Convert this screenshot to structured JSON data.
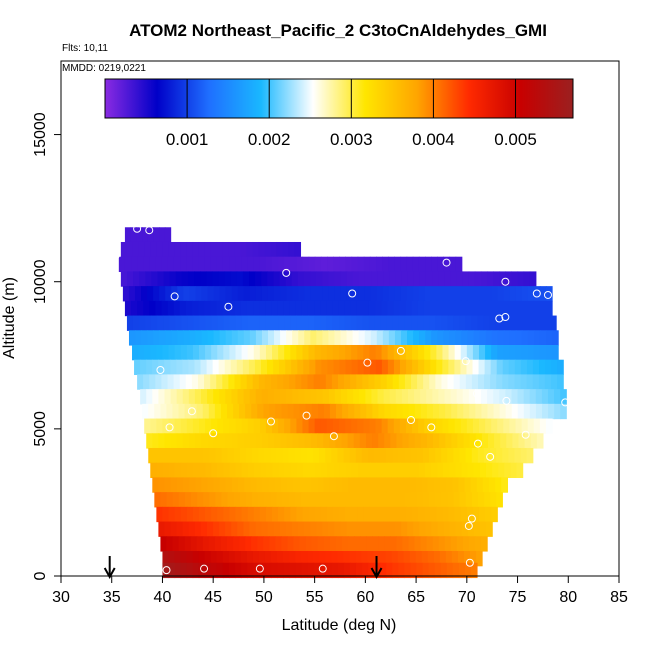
{
  "chart_data": {
    "type": "heatmap",
    "title": "ATOM2 Northeast_Pacific_2 C3toCnAldehydes_GMI",
    "subtitle_flights": "Flts: 10,11",
    "subtitle_dates": "MMDD: 0219,0221",
    "xlabel": "Latitude (deg N)",
    "ylabel": "Altitude (m)",
    "xlim": [
      30,
      85
    ],
    "ylim": [
      0,
      17500
    ],
    "x_ticks": [
      "30",
      "35",
      "40",
      "45",
      "50",
      "55",
      "60",
      "65",
      "70",
      "75",
      "80",
      "85"
    ],
    "y_ticks": [
      "0",
      "5000",
      "10000",
      "15000"
    ],
    "colorbar": {
      "range": [
        0,
        0.0057
      ],
      "ticks": [
        "0.001",
        "0.002",
        "0.003",
        "0.004",
        "0.005"
      ],
      "colors": [
        "#8a2be2",
        "#0000c8",
        "#1f6fff",
        "#1ab8ff",
        "#ffffff",
        "#ffe600",
        "#ffa500",
        "#ff2a00",
        "#c80000",
        "#9b2020"
      ]
    },
    "field": [
      {
        "alt": 11600,
        "lat_min": 36.3,
        "lat_max": 40.8,
        "values": [
          0.0003
        ]
      },
      {
        "alt": 11100,
        "lat_min": 35.9,
        "lat_max": 53.6,
        "values": [
          0.0003,
          0.0003,
          0.0003,
          0.0004
        ]
      },
      {
        "alt": 10600,
        "lat_min": 35.7,
        "lat_max": 69.5,
        "values": [
          0.0003,
          0.0003,
          0.0003,
          0.0002,
          0.0003,
          0.0003
        ]
      },
      {
        "alt": 10100,
        "lat_min": 35.9,
        "lat_max": 76.8,
        "values": [
          0.0003,
          0.0006,
          0.0007,
          0.0004,
          0.0003,
          0.0003,
          0.0003,
          0.0004
        ]
      },
      {
        "alt": 9600,
        "lat_min": 36.1,
        "lat_max": 78.4,
        "values": [
          0.0004,
          0.001,
          0.0008,
          0.0009,
          0.0009,
          0.001,
          0.001,
          0.0011
        ]
      },
      {
        "alt": 9100,
        "lat_min": 36.3,
        "lat_max": 78.4,
        "values": [
          0.0005,
          0.0008,
          0.0009,
          0.0009,
          0.0009,
          0.001,
          0.001,
          0.001
        ]
      },
      {
        "alt": 8600,
        "lat_min": 36.5,
        "lat_max": 78.8,
        "values": [
          0.001,
          0.0011,
          0.0012,
          0.0012,
          0.0011,
          0.0011,
          0.001,
          0.001
        ]
      },
      {
        "alt": 8100,
        "lat_min": 36.7,
        "lat_max": 79.0,
        "values": [
          0.0016,
          0.0018,
          0.0021,
          0.0029,
          0.0024,
          0.0016,
          0.0013,
          0.0012
        ]
      },
      {
        "alt": 7600,
        "lat_min": 37.0,
        "lat_max": 79.0,
        "values": [
          0.0018,
          0.002,
          0.0026,
          0.0036,
          0.004,
          0.003,
          0.0017,
          0.0016
        ]
      },
      {
        "alt": 7100,
        "lat_min": 37.2,
        "lat_max": 79.5,
        "values": [
          0.0021,
          0.0023,
          0.003,
          0.0039,
          0.0042,
          0.0031,
          0.0021,
          0.0018
        ]
      },
      {
        "alt": 6600,
        "lat_min": 37.5,
        "lat_max": 79.5,
        "values": [
          0.0022,
          0.0026,
          0.0036,
          0.004,
          0.0034,
          0.0026,
          0.0022,
          0.002
        ]
      },
      {
        "alt": 6100,
        "lat_min": 37.8,
        "lat_max": 79.8,
        "values": [
          0.0024,
          0.003,
          0.0037,
          0.0035,
          0.003,
          0.0027,
          0.0024,
          0.002
        ]
      },
      {
        "alt": 5600,
        "lat_min": 38.0,
        "lat_max": 79.8,
        "values": [
          0.0025,
          0.0029,
          0.0038,
          0.004,
          0.0033,
          0.003,
          0.0026,
          0.0022
        ]
      },
      {
        "alt": 5100,
        "lat_min": 38.2,
        "lat_max": 78.4,
        "values": [
          0.0028,
          0.0031,
          0.0034,
          0.0042,
          0.004,
          0.0033,
          0.0029,
          0.0025
        ]
      },
      {
        "alt": 4600,
        "lat_min": 38.4,
        "lat_max": 77.5,
        "values": [
          0.0031,
          0.0033,
          0.0034,
          0.0036,
          0.004,
          0.0036,
          0.0031,
          0.0027
        ]
      },
      {
        "alt": 4100,
        "lat_min": 38.6,
        "lat_max": 76.5,
        "values": [
          0.0035,
          0.0035,
          0.0033,
          0.0032,
          0.0036,
          0.0035,
          0.0031,
          0.0029
        ]
      },
      {
        "alt": 3600,
        "lat_min": 38.8,
        "lat_max": 75.5,
        "values": [
          0.0037,
          0.0036,
          0.0034,
          0.0033,
          0.0034,
          0.0034,
          0.0032,
          0.003
        ]
      },
      {
        "alt": 3100,
        "lat_min": 39.0,
        "lat_max": 74.0,
        "values": [
          0.0039,
          0.0038,
          0.0036,
          0.0035,
          0.0036,
          0.0036,
          0.0035,
          0.0031
        ]
      },
      {
        "alt": 2600,
        "lat_min": 39.2,
        "lat_max": 73.5,
        "values": [
          0.0041,
          0.0039,
          0.0037,
          0.0036,
          0.0036,
          0.0036,
          0.0035,
          0.0032
        ]
      },
      {
        "alt": 2100,
        "lat_min": 39.4,
        "lat_max": 73.0,
        "values": [
          0.0044,
          0.0042,
          0.004,
          0.0038,
          0.0037,
          0.0037,
          0.0036,
          0.0034
        ]
      },
      {
        "alt": 1600,
        "lat_min": 39.6,
        "lat_max": 72.5,
        "values": [
          0.0047,
          0.0044,
          0.0041,
          0.004,
          0.0039,
          0.0039,
          0.0037,
          0.0035
        ]
      },
      {
        "alt": 1100,
        "lat_min": 39.8,
        "lat_max": 72.0,
        "values": [
          0.0051,
          0.0047,
          0.0044,
          0.0042,
          0.0041,
          0.0041,
          0.0039,
          0.0037
        ]
      },
      {
        "alt": 600,
        "lat_min": 40.0,
        "lat_max": 71.5,
        "values": [
          0.0054,
          0.005,
          0.0047,
          0.0045,
          0.0044,
          0.0043,
          0.0041,
          0.0038
        ]
      },
      {
        "alt": 200,
        "lat_min": 40.0,
        "lat_max": 71.0,
        "values": [
          0.0056,
          0.0052,
          0.0049,
          0.0048,
          0.0047,
          0.0044,
          0.0042,
          0.004
        ]
      }
    ],
    "sample_points": [
      {
        "lat": 37.5,
        "alt": 11800
      },
      {
        "lat": 38.7,
        "alt": 11750
      },
      {
        "lat": 35.4,
        "alt": 10900
      },
      {
        "lat": 52.2,
        "alt": 10300
      },
      {
        "lat": 68.0,
        "alt": 10650
      },
      {
        "lat": 41.2,
        "alt": 9500
      },
      {
        "lat": 46.5,
        "alt": 9150
      },
      {
        "lat": 58.7,
        "alt": 9600
      },
      {
        "lat": 73.8,
        "alt": 10000
      },
      {
        "lat": 76.9,
        "alt": 9600
      },
      {
        "lat": 78.0,
        "alt": 9550
      },
      {
        "lat": 73.2,
        "alt": 8750
      },
      {
        "lat": 73.8,
        "alt": 8800
      },
      {
        "lat": 63.5,
        "alt": 7650
      },
      {
        "lat": 60.2,
        "alt": 7250
      },
      {
        "lat": 69.9,
        "alt": 7300
      },
      {
        "lat": 39.8,
        "alt": 7000
      },
      {
        "lat": 71.0,
        "alt": 6200
      },
      {
        "lat": 42.9,
        "alt": 5600
      },
      {
        "lat": 54.2,
        "alt": 5450
      },
      {
        "lat": 73.9,
        "alt": 5950
      },
      {
        "lat": 79.7,
        "alt": 5900
      },
      {
        "lat": 40.7,
        "alt": 5050
      },
      {
        "lat": 50.7,
        "alt": 5250
      },
      {
        "lat": 64.5,
        "alt": 5300
      },
      {
        "lat": 66.5,
        "alt": 5050
      },
      {
        "lat": 45.0,
        "alt": 4850
      },
      {
        "lat": 56.9,
        "alt": 4750
      },
      {
        "lat": 71.1,
        "alt": 4500
      },
      {
        "lat": 75.8,
        "alt": 4800
      },
      {
        "lat": 72.3,
        "alt": 4050
      },
      {
        "lat": 70.5,
        "alt": 1950
      },
      {
        "lat": 70.2,
        "alt": 1700
      },
      {
        "lat": 40.4,
        "alt": 200
      },
      {
        "lat": 44.1,
        "alt": 250
      },
      {
        "lat": 49.6,
        "alt": 250
      },
      {
        "lat": 55.8,
        "alt": 250
      },
      {
        "lat": 70.3,
        "alt": 450
      }
    ],
    "arrows_lat": [
      34.8,
      61.1
    ]
  }
}
